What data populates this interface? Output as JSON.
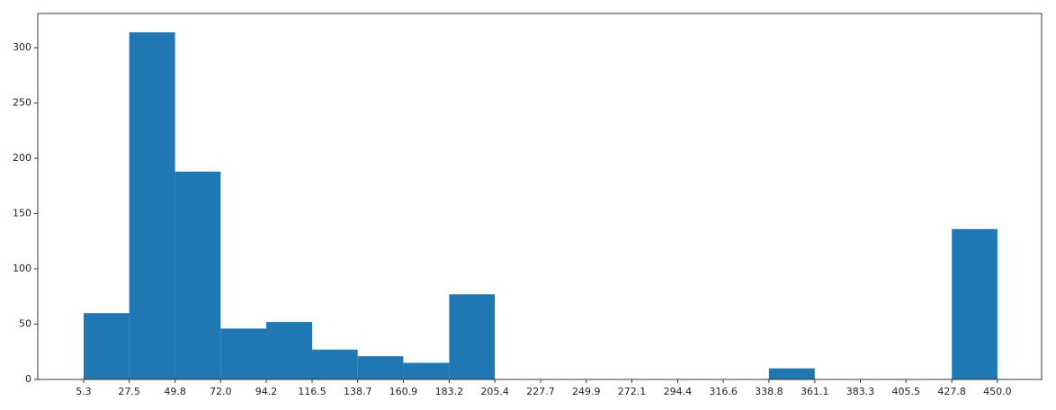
{
  "chart_data": {
    "type": "histogram",
    "bins": [
      5.3,
      27.5,
      49.8,
      {
        "value": 72,
        "label": "72.0"
      },
      94.2,
      116.5,
      138.7,
      160.9,
      183.2,
      205.4,
      227.7,
      249.9,
      272.1,
      294.4,
      316.6,
      338.8,
      361.1,
      383.3,
      405.5,
      427.8,
      {
        "value": 450,
        "label": "450.0"
      }
    ],
    "values": [
      60,
      314,
      188,
      46,
      52,
      27,
      21,
      15,
      77,
      0,
      0,
      0,
      0,
      0,
      0,
      10,
      0,
      0,
      0,
      136
    ],
    "color": "#1f77b4",
    "xlim": [
      -17,
      471.5
    ],
    "ylim": [
      0,
      331
    ],
    "yticks": [
      0,
      50,
      100,
      150,
      200,
      250,
      300
    ]
  }
}
